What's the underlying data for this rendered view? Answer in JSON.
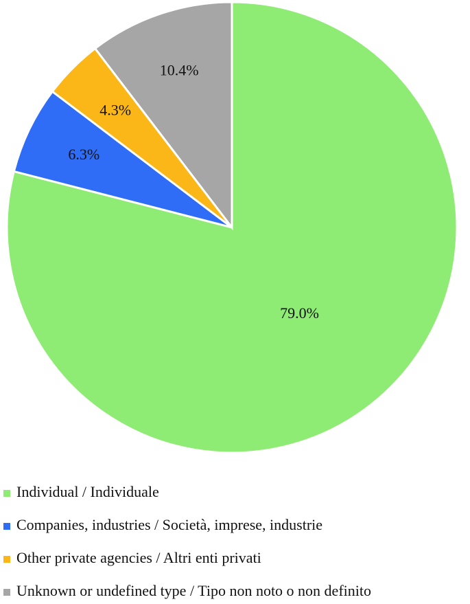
{
  "chart_data": {
    "type": "pie",
    "categories": [
      "Individual / Individuale",
      "Companies, industries / Società, imprese, industrie",
      "Other private agencies / Altri enti privati",
      "Unknown or undefined type / Tipo non noto o non definito"
    ],
    "values": [
      79.0,
      6.3,
      4.3,
      10.4
    ],
    "value_labels": [
      "79.0%",
      "6.3%",
      "4.3%",
      "10.4%"
    ],
    "colors": [
      "#8eeb73",
      "#2f6df6",
      "#fbb718",
      "#a6a6a6"
    ]
  }
}
